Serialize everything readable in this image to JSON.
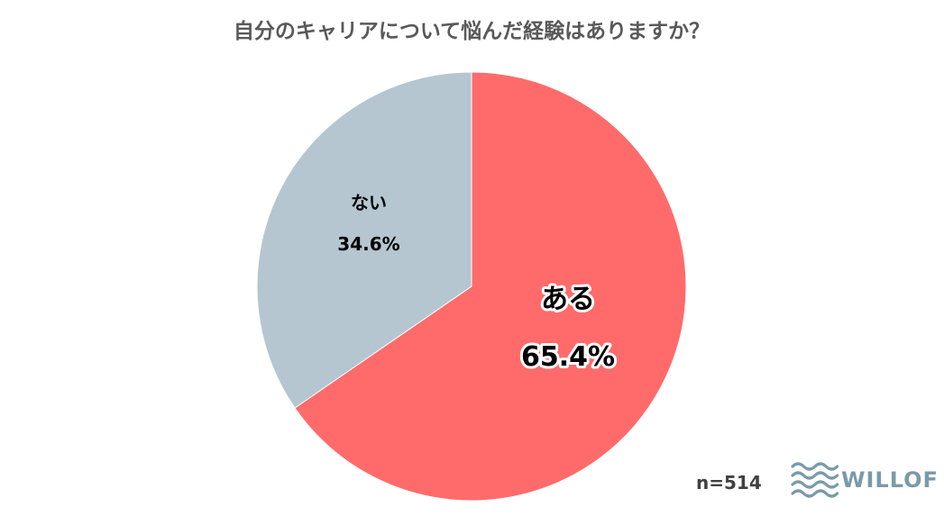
{
  "chart_data": {
    "type": "pie",
    "title": "自分のキャリアについて悩んだ経験はありますか？",
    "slices": [
      {
        "label": "ある",
        "value": 65.4,
        "value_label": "65.4%",
        "color": "#ff6b6b"
      },
      {
        "label": "ない",
        "value": 34.6,
        "value_label": "34.6%",
        "color": "#b5c6d0"
      }
    ],
    "start_angle": "12 o'clock",
    "direction": "clockwise",
    "sample_size": "n=514"
  },
  "brand": {
    "name": "WILLOF",
    "icon": "wave-lines-icon",
    "color": "#7a9aaa"
  }
}
